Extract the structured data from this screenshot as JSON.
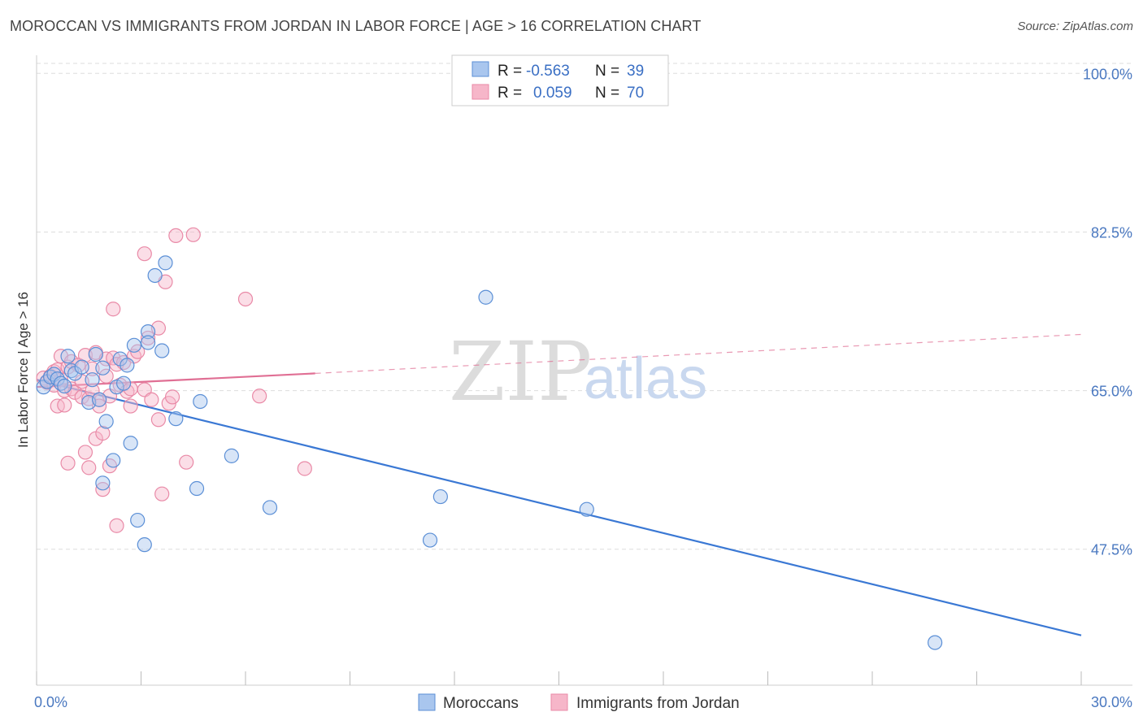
{
  "title": "MOROCCAN VS IMMIGRANTS FROM JORDAN IN LABOR FORCE | AGE > 16 CORRELATION CHART",
  "source": "Source: ZipAtlas.com",
  "watermark": {
    "zip": "ZIP",
    "atlas": "atlas"
  },
  "colors": {
    "blue_fill": "#a9c6ee",
    "blue_stroke": "#5b8fd6",
    "blue_line": "#3a78d4",
    "pink_fill": "#f6b6c9",
    "pink_stroke": "#e98aa7",
    "pink_line": "#e06f94",
    "tick_text": "#4a78c0",
    "grid": "#dddddd"
  },
  "legend": {
    "rows": [
      {
        "r_label": "R =",
        "r_value": "-0.563",
        "n_label": "N =",
        "n_value": "39",
        "series": "Moroccans"
      },
      {
        "r_label": "R =",
        "r_value": "0.059",
        "n_label": "N =",
        "n_value": "70",
        "series": "Immigrants from Jordan"
      }
    ]
  },
  "chart_data": {
    "type": "scatter",
    "title": "MOROCCAN VS IMMIGRANTS FROM JORDAN IN LABOR FORCE | AGE > 16 CORRELATION CHART",
    "xlabel": "",
    "ylabel": "In Labor Force | Age > 16",
    "xlim": [
      0,
      30
    ],
    "ylim": [
      32.5,
      102
    ],
    "x_tick_labels": [
      "0.0%",
      "30.0%"
    ],
    "x_tick_values": [
      0,
      30
    ],
    "y_tick_labels": [
      "100.0%",
      "82.5%",
      "65.0%",
      "47.5%"
    ],
    "y_tick_values": [
      100,
      82.5,
      65,
      47.5
    ],
    "series": [
      {
        "name": "Moroccans",
        "color": "#5b8fd6",
        "points": [
          [
            0.2,
            65.4
          ],
          [
            0.3,
            66.0
          ],
          [
            0.4,
            66.5
          ],
          [
            0.5,
            66.8
          ],
          [
            0.6,
            66.3
          ],
          [
            0.7,
            65.8
          ],
          [
            0.8,
            65.5
          ],
          [
            0.9,
            68.8
          ],
          [
            1.0,
            67.2
          ],
          [
            1.1,
            66.9
          ],
          [
            1.3,
            67.6
          ],
          [
            1.5,
            63.7
          ],
          [
            1.6,
            66.2
          ],
          [
            1.7,
            69.0
          ],
          [
            1.8,
            64.0
          ],
          [
            1.9,
            67.5
          ],
          [
            1.9,
            54.8
          ],
          [
            2.0,
            61.6
          ],
          [
            2.2,
            57.3
          ],
          [
            2.3,
            65.4
          ],
          [
            2.4,
            68.5
          ],
          [
            2.5,
            65.8
          ],
          [
            2.6,
            67.8
          ],
          [
            2.7,
            59.2
          ],
          [
            2.8,
            70.0
          ],
          [
            2.9,
            50.7
          ],
          [
            3.1,
            48.0
          ],
          [
            3.2,
            71.5
          ],
          [
            3.2,
            70.3
          ],
          [
            3.4,
            77.7
          ],
          [
            3.6,
            69.4
          ],
          [
            3.7,
            79.1
          ],
          [
            4.0,
            61.9
          ],
          [
            4.6,
            54.2
          ],
          [
            4.7,
            63.8
          ],
          [
            5.6,
            57.8
          ],
          [
            6.7,
            52.1
          ],
          [
            11.3,
            48.5
          ],
          [
            11.6,
            53.3
          ],
          [
            12.9,
            75.3
          ],
          [
            15.8,
            51.9
          ],
          [
            25.8,
            37.2
          ]
        ],
        "trend": {
          "x1": 0.0,
          "y1": 66.2,
          "x2": 30.0,
          "y2": 38.0
        }
      },
      {
        "name": "Immigrants from Jordan",
        "color": "#e98aa7",
        "points": [
          [
            0.2,
            66.4
          ],
          [
            0.3,
            65.9
          ],
          [
            0.4,
            66.6
          ],
          [
            0.5,
            67.1
          ],
          [
            0.5,
            65.6
          ],
          [
            0.6,
            67.3
          ],
          [
            0.6,
            63.3
          ],
          [
            0.7,
            66.2
          ],
          [
            0.7,
            68.8
          ],
          [
            0.8,
            65.0
          ],
          [
            0.8,
            63.4
          ],
          [
            0.9,
            67.6
          ],
          [
            0.9,
            57.0
          ],
          [
            1.0,
            68.2
          ],
          [
            1.0,
            65.2
          ],
          [
            1.1,
            64.8
          ],
          [
            1.2,
            67.8
          ],
          [
            1.3,
            66.0
          ],
          [
            1.3,
            64.3
          ],
          [
            1.4,
            68.9
          ],
          [
            1.4,
            58.2
          ],
          [
            1.5,
            64.1
          ],
          [
            1.5,
            56.5
          ],
          [
            1.6,
            67.4
          ],
          [
            1.6,
            65.0
          ],
          [
            1.7,
            69.2
          ],
          [
            1.7,
            59.7
          ],
          [
            1.8,
            64.0
          ],
          [
            1.8,
            63.3
          ],
          [
            1.9,
            54.1
          ],
          [
            1.9,
            60.3
          ],
          [
            2.0,
            68.5
          ],
          [
            2.0,
            66.6
          ],
          [
            2.1,
            64.4
          ],
          [
            2.1,
            56.7
          ],
          [
            2.2,
            68.6
          ],
          [
            2.2,
            74.0
          ],
          [
            2.3,
            50.1
          ],
          [
            2.3,
            67.9
          ],
          [
            2.4,
            65.6
          ],
          [
            2.5,
            68.1
          ],
          [
            2.6,
            64.9
          ],
          [
            2.7,
            65.2
          ],
          [
            2.7,
            63.3
          ],
          [
            2.8,
            68.8
          ],
          [
            2.9,
            69.3
          ],
          [
            3.1,
            65.1
          ],
          [
            3.1,
            80.1
          ],
          [
            3.2,
            70.8
          ],
          [
            3.3,
            64.0
          ],
          [
            3.5,
            71.9
          ],
          [
            3.5,
            61.8
          ],
          [
            3.6,
            53.6
          ],
          [
            3.7,
            77.0
          ],
          [
            3.8,
            63.6
          ],
          [
            3.9,
            64.3
          ],
          [
            4.0,
            82.1
          ],
          [
            4.3,
            57.1
          ],
          [
            4.5,
            82.2
          ],
          [
            6.0,
            75.1
          ],
          [
            6.4,
            64.4
          ],
          [
            7.7,
            56.4
          ]
        ],
        "trend": {
          "x1": 0.0,
          "y1": 65.4,
          "x2": 8.0,
          "y2": 66.9
        },
        "trend_dashed": {
          "x1": 8.0,
          "y1": 66.9,
          "x2": 30.0,
          "y2": 71.2
        }
      }
    ],
    "legend_position": "top-center",
    "grid": true
  }
}
